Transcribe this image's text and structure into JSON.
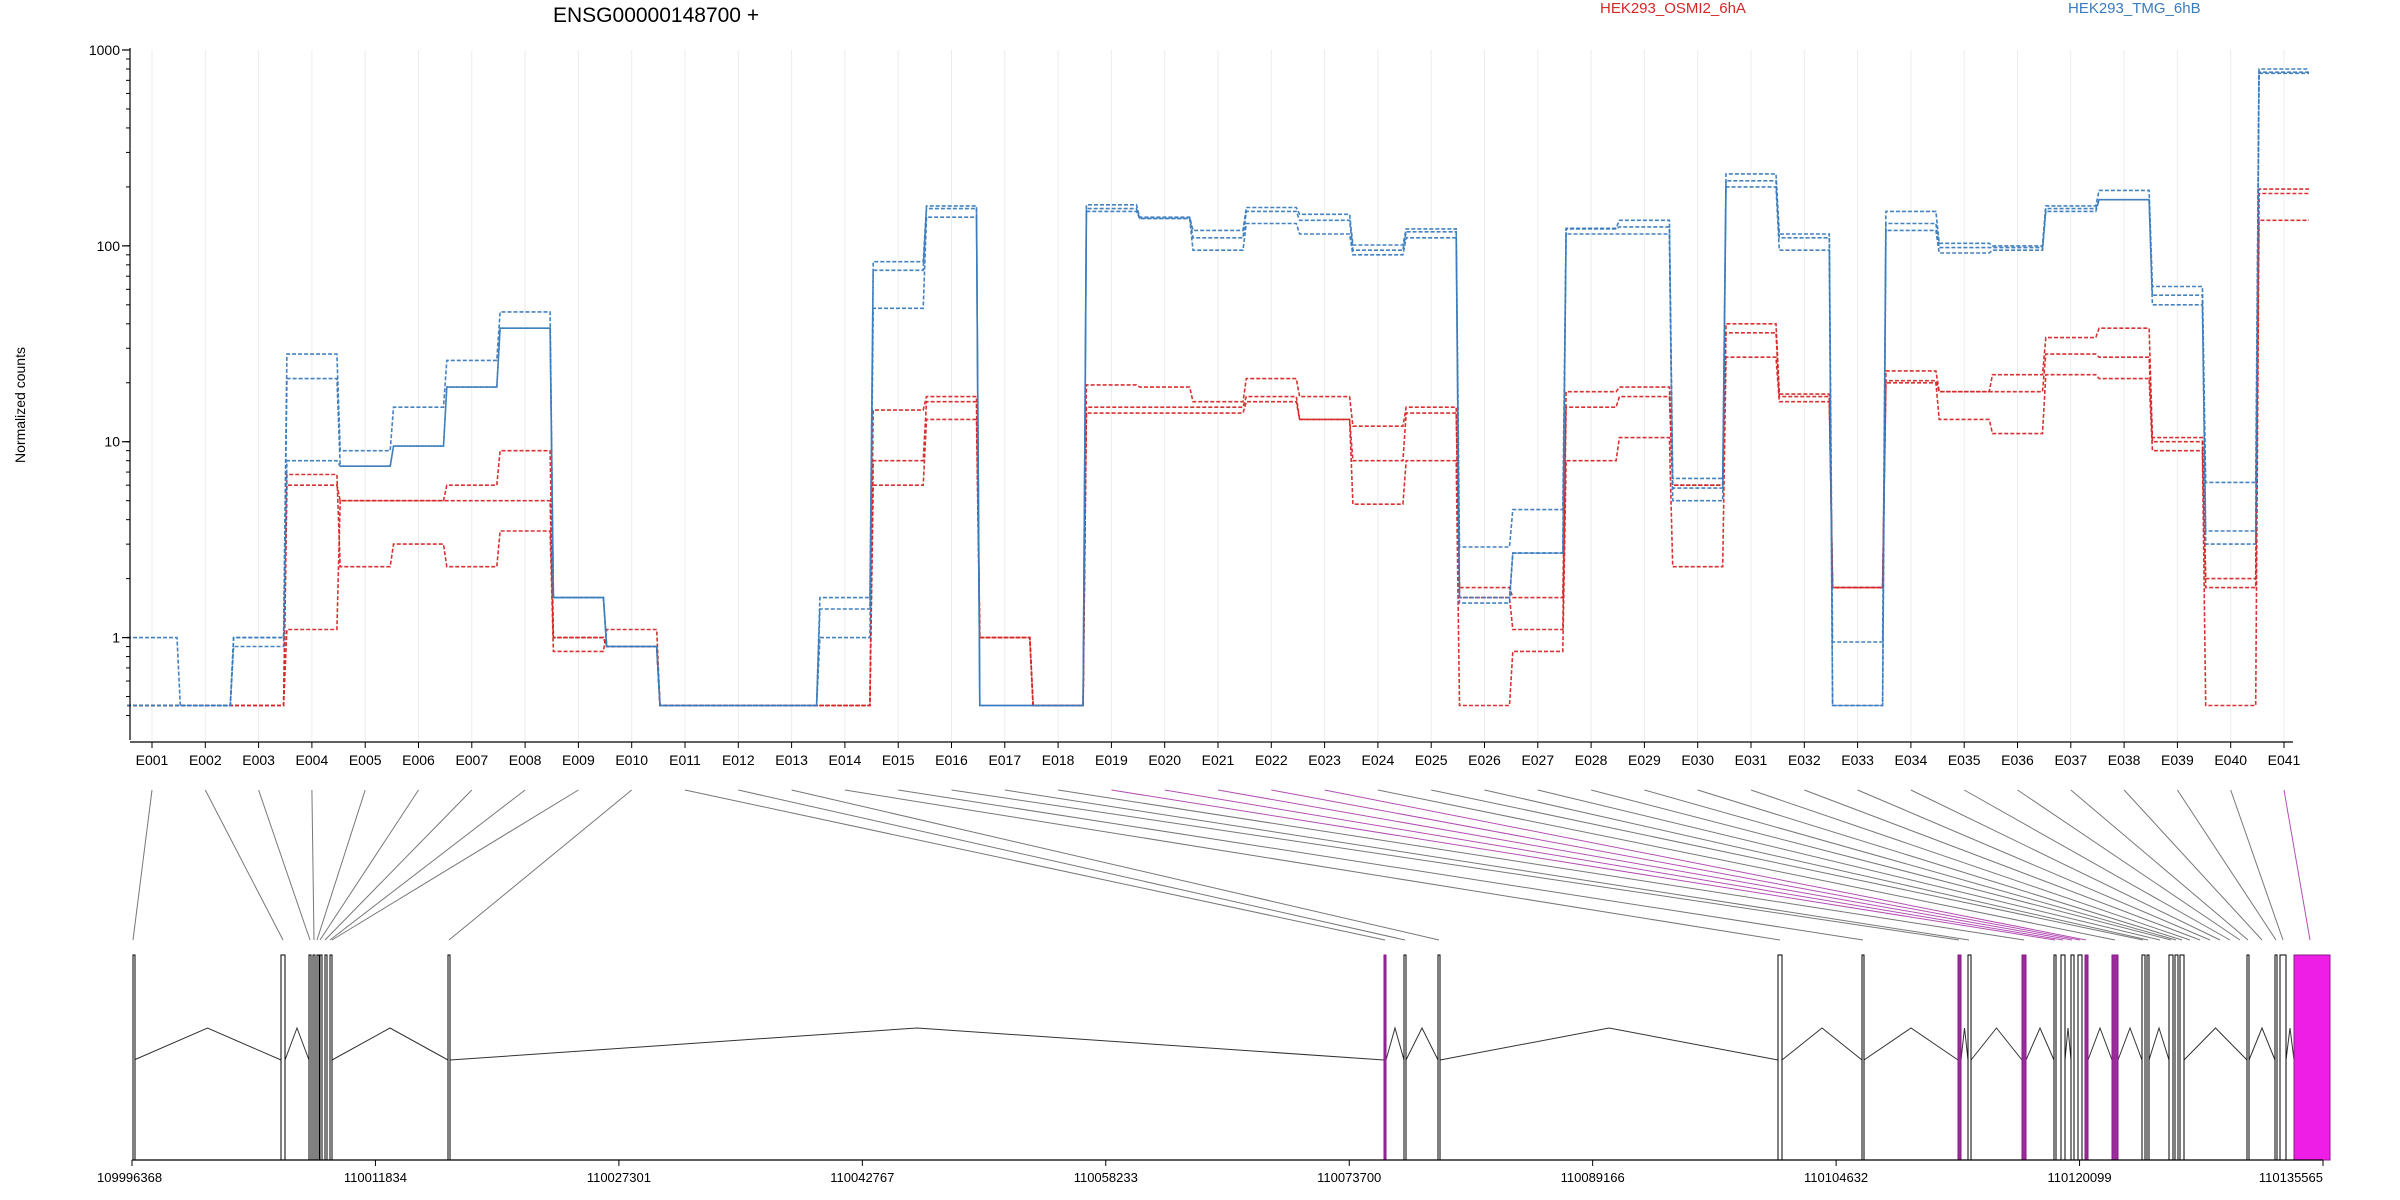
{
  "chart_data": {
    "type": "line",
    "title": "ENSG00000148700 +",
    "ylabel": "Normalized counts",
    "yscale": "log",
    "ylim": [
      0.3,
      1000
    ],
    "yticks": [
      "1",
      "10",
      "100",
      "1000"
    ],
    "grid": "vertical lines at exon centres",
    "legend_position": "top",
    "categories": [
      "E001",
      "E002",
      "E003",
      "E004",
      "E005",
      "E006",
      "E007",
      "E008",
      "E009",
      "E010",
      "E011",
      "E012",
      "E013",
      "E014",
      "E015",
      "E016",
      "E017",
      "E018",
      "E019",
      "E020",
      "E021",
      "E022",
      "E023",
      "E024",
      "E025",
      "E026",
      "E027",
      "E028",
      "E029",
      "E030",
      "E031",
      "E032",
      "E033",
      "E034",
      "E035",
      "E036",
      "E037",
      "E038",
      "E039",
      "E040",
      "E041"
    ],
    "series": [
      {
        "name": "HEK293_OSMI2_6hA",
        "color": "#d62728",
        "replicates": [
          [
            0.45,
            0.45,
            0.45,
            6.8,
            2.3,
            3.0,
            2.3,
            3.5,
            0.85,
            1.1,
            0.45,
            0.45,
            0.45,
            0.45,
            6.0,
            13.0,
            1.0,
            0.45,
            14.0,
            14.0,
            14.0,
            16.0,
            13.0,
            4.8,
            8.0,
            0.45,
            0.85,
            8.0,
            10.5,
            2.3,
            27.0,
            16.0,
            1.8,
            20.0,
            13.0,
            11.0,
            22.0,
            21.0,
            9.0,
            0.45,
            135.0
          ],
          [
            0.45,
            0.45,
            0.45,
            6.0,
            5.0,
            5.0,
            6.0,
            9.0,
            1.0,
            0.9,
            0.45,
            0.45,
            0.45,
            0.45,
            8.0,
            16.0,
            1.0,
            0.45,
            15.0,
            15.0,
            15.0,
            17.0,
            13.0,
            8.0,
            14.0,
            1.6,
            1.1,
            15.0,
            17.0,
            6.0,
            36.0,
            17.0,
            1.8,
            20.5,
            18.0,
            18.0,
            28.0,
            27.0,
            10.0,
            1.8,
            185.0
          ],
          [
            0.45,
            0.45,
            0.45,
            1.1,
            5.0,
            5.0,
            5.0,
            5.0,
            1.0,
            0.9,
            0.45,
            0.45,
            0.45,
            0.45,
            14.5,
            17.0,
            1.0,
            0.45,
            19.5,
            19.0,
            16.0,
            21.0,
            17.0,
            12.0,
            15.0,
            1.8,
            1.6,
            18.0,
            19.0,
            6.0,
            40.0,
            17.5,
            1.8,
            23.0,
            18.0,
            22.0,
            34.0,
            38.0,
            10.5,
            2.0,
            195.0
          ]
        ]
      },
      {
        "name": "HEK293_TMG_6hB",
        "color": "#3a7bbd",
        "replicates": [
          [
            1.0,
            0.45,
            0.9,
            8.0,
            7.5,
            9.5,
            19.0,
            38.0,
            1.6,
            0.9,
            0.45,
            0.45,
            0.45,
            1.0,
            48.0,
            140.0,
            0.45,
            0.45,
            150.0,
            138.0,
            95.0,
            130.0,
            115.0,
            90.0,
            110.0,
            1.5,
            2.7,
            115.0,
            115.0,
            5.0,
            200.0,
            95.0,
            0.45,
            120.0,
            92.0,
            95.0,
            150.0,
            172.0,
            50.0,
            3.0,
            760.0
          ],
          [
            0.45,
            0.45,
            1.0,
            21.0,
            7.5,
            9.5,
            19.0,
            38.0,
            1.6,
            0.9,
            0.45,
            0.45,
            0.45,
            1.4,
            75.0,
            155.0,
            0.45,
            0.45,
            155.0,
            138.0,
            110.0,
            150.0,
            135.0,
            95.0,
            118.0,
            1.6,
            2.7,
            122.0,
            125.0,
            5.8,
            215.0,
            110.0,
            0.45,
            130.0,
            98.0,
            98.0,
            155.0,
            172.0,
            56.0,
            3.5,
            770.0
          ],
          [
            0.45,
            0.45,
            1.0,
            28.0,
            9.0,
            15.0,
            26.0,
            46.0,
            1.6,
            0.9,
            0.45,
            0.45,
            0.45,
            1.6,
            83.0,
            160.0,
            0.45,
            0.45,
            162.0,
            140.0,
            120.0,
            157.0,
            145.0,
            101.0,
            122.0,
            2.9,
            4.5,
            123.0,
            135.0,
            6.5,
            233.0,
            115.0,
            0.95,
            150.0,
            103.0,
            100.0,
            160.0,
            192.0,
            62.0,
            6.2,
            800.0
          ]
        ]
      }
    ],
    "gene_coords": {
      "ticks": [
        "109996368",
        "110011834",
        "110027301",
        "110042767",
        "110058233",
        "110073700",
        "110089166",
        "110104632",
        "110120099",
        "110135565"
      ]
    }
  }
}
